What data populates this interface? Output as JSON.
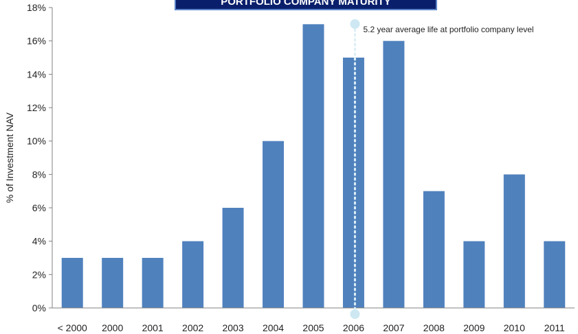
{
  "chart_data": {
    "type": "bar",
    "title": "PORTFOLIO COMPANY MATURITY",
    "ylabel": "% of Investment NAV",
    "xlabel": "",
    "categories": [
      "< 2000",
      "2000",
      "2001",
      "2002",
      "2003",
      "2004",
      "2005",
      "2006",
      "2007",
      "2008",
      "2009",
      "2010",
      "2011"
    ],
    "values": [
      3,
      3,
      3,
      4,
      6,
      10,
      17,
      15,
      16,
      7,
      4,
      8,
      4
    ],
    "value_unit": "%",
    "ylim": [
      0,
      18
    ],
    "yticks": [
      "0%",
      "2%",
      "4%",
      "6%",
      "8%",
      "10%",
      "12%",
      "14%",
      "16%",
      "18%"
    ],
    "grid": false,
    "legend": "none",
    "annotation": {
      "text": "5.2 year average life at portfolio company level",
      "at_category": "2006",
      "style": "dotted vertical line"
    }
  },
  "colors": {
    "bar": "#4F81BD",
    "title_bg": "#0A1F6B",
    "title_border": "#5A84C8",
    "annotation_line": "#DCEFF6",
    "annotation_marker": "#CDE8F2",
    "axis": "#808080"
  }
}
